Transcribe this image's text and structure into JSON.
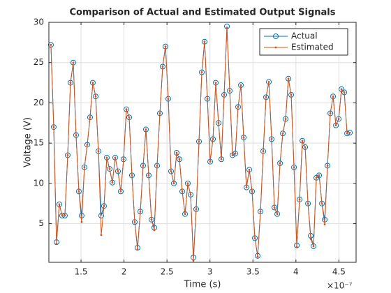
{
  "chart_data": {
    "type": "line",
    "title": "Comparison of Actual and Estimated Output Signals",
    "x_label": "Time (s)",
    "y_label": "Voltage (V)",
    "x_exponent_label": "×10⁻⁷",
    "x": [
      1.15,
      1.1825,
      1.215,
      1.2475,
      1.28,
      1.3125,
      1.345,
      1.3775,
      1.41,
      1.4425,
      1.475,
      1.5075,
      1.54,
      1.5725,
      1.605,
      1.6375,
      1.67,
      1.7025,
      1.735,
      1.7675,
      1.8,
      1.8325,
      1.865,
      1.8975,
      1.93,
      1.9625,
      1.995,
      2.0275,
      2.06,
      2.0925,
      2.125,
      2.1575,
      2.19,
      2.2225,
      2.255,
      2.2875,
      2.32,
      2.3525,
      2.385,
      2.4175,
      2.45,
      2.4825,
      2.515,
      2.5475,
      2.58,
      2.6125,
      2.645,
      2.6775,
      2.71,
      2.7425,
      2.775,
      2.8075,
      2.84,
      2.8725,
      2.905,
      2.9375,
      2.97,
      3.0025,
      3.035,
      3.0675,
      3.1,
      3.1325,
      3.165,
      3.1975,
      3.23,
      3.2625,
      3.295,
      3.3275,
      3.36,
      3.3925,
      3.425,
      3.4575,
      3.49,
      3.5225,
      3.555,
      3.5875,
      3.62,
      3.6525,
      3.685,
      3.7175,
      3.75,
      3.7825,
      3.815,
      3.8475,
      3.88,
      3.9125,
      3.945,
      3.9775,
      4.01,
      4.0425,
      4.075,
      4.1075,
      4.14,
      4.1725,
      4.205,
      4.2375,
      4.27,
      4.3025,
      4.335,
      4.3675,
      4.4,
      4.4325,
      4.465,
      4.4975,
      4.53,
      4.5625,
      4.595,
      4.6275
    ],
    "series": [
      {
        "name": "Actual",
        "color": "#0072BD",
        "marker": "circle",
        "values": [
          27.2,
          17,
          2.7,
          7.4,
          6,
          6,
          13.5,
          22.5,
          25,
          16,
          9,
          6,
          12,
          14.8,
          18.2,
          22.5,
          20.8,
          14,
          6,
          7.2,
          13.2,
          11.8,
          10.1,
          13.2,
          11.5,
          9,
          13,
          19.2,
          18.2,
          11,
          5.2,
          2,
          6.5,
          12.2,
          16.7,
          11,
          5.5,
          4.5,
          12.2,
          18.7,
          24.5,
          27,
          20.5,
          11.5,
          10,
          13.8,
          13,
          9,
          6.2,
          10,
          8.6,
          0.8,
          6.8,
          15.2,
          23.8,
          27.6,
          20.5,
          12.7,
          15.5,
          22.5,
          17.5,
          13,
          21,
          29.5,
          21.5,
          13.5,
          13.7,
          19.5,
          22.2,
          15.7,
          9.5,
          11.7,
          9,
          3.2,
          1,
          6.5,
          14,
          20.7,
          22.6,
          15.5,
          7,
          6.2,
          12.5,
          16.2,
          18,
          23,
          21,
          12,
          2.3,
          8,
          15.3,
          14.5,
          7.5,
          3.5,
          2.2,
          10.7,
          11,
          7.5,
          5.5,
          12.2,
          18.7,
          20.8,
          17.2,
          18,
          21.7,
          21.3,
          16.2,
          16.3
        ]
      },
      {
        "name": "Estimated",
        "color": "#D95319",
        "marker": "dot",
        "values": [
          27.2,
          17,
          2.5,
          7.4,
          6,
          6,
          13.5,
          22.5,
          25,
          16,
          9,
          5.2,
          12,
          14.8,
          18.2,
          22.5,
          20.8,
          14,
          3.6,
          7.2,
          13.2,
          11.8,
          10.1,
          13.2,
          11.5,
          9,
          13,
          19.2,
          18.2,
          11,
          5.2,
          1.8,
          6.5,
          12.2,
          16.7,
          11,
          5.5,
          4.2,
          12.2,
          18.7,
          24.5,
          27,
          20.5,
          11.5,
          10,
          13.8,
          13,
          9,
          6.2,
          10,
          8.6,
          0.4,
          6.8,
          15.2,
          23.8,
          27.6,
          20.5,
          12.7,
          15.5,
          22.5,
          17.5,
          13,
          21,
          29.3,
          21.5,
          13.5,
          13.7,
          19.5,
          22.2,
          15.7,
          9.5,
          11.7,
          9,
          3.2,
          0.9,
          6.5,
          14,
          20.7,
          22.6,
          15.5,
          7,
          6.2,
          12.5,
          16.2,
          18,
          23,
          21,
          12,
          2.1,
          8,
          15.3,
          14.5,
          7.5,
          3.1,
          2.2,
          10.7,
          11,
          7.5,
          4.9,
          12.2,
          18.7,
          20.8,
          17.2,
          18,
          21.7,
          21.3,
          16.2,
          16.3
        ]
      }
    ],
    "xlim": [
      1.126,
      4.7
    ],
    "ylim": [
      0.2,
      30
    ],
    "xticks": [
      1.5,
      2,
      2.5,
      3,
      3.5,
      4,
      4.5
    ],
    "yticks": [
      5,
      10,
      15,
      20,
      25,
      30
    ],
    "grid": true,
    "legend": "northeast"
  }
}
